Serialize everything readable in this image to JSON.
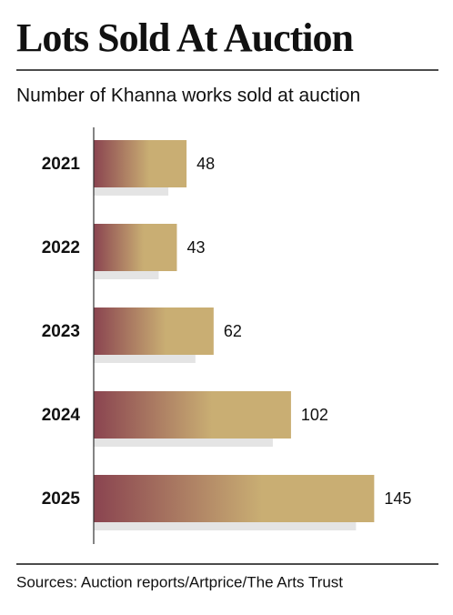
{
  "chart_data": {
    "type": "barh",
    "title": "Lots Sold At Auction",
    "subtitle": "Number of Khanna works sold at auction",
    "categories": [
      "2021",
      "2022",
      "2023",
      "2024",
      "2025"
    ],
    "values": [
      48,
      43,
      62,
      102,
      145
    ],
    "gradient": [
      "#8a4450",
      "#c9ae73"
    ],
    "shadow_color": "#e4e4e4",
    "xlim": [
      0,
      150
    ],
    "source": "Sources: Auction reports/Artprice/The Arts Trust"
  }
}
